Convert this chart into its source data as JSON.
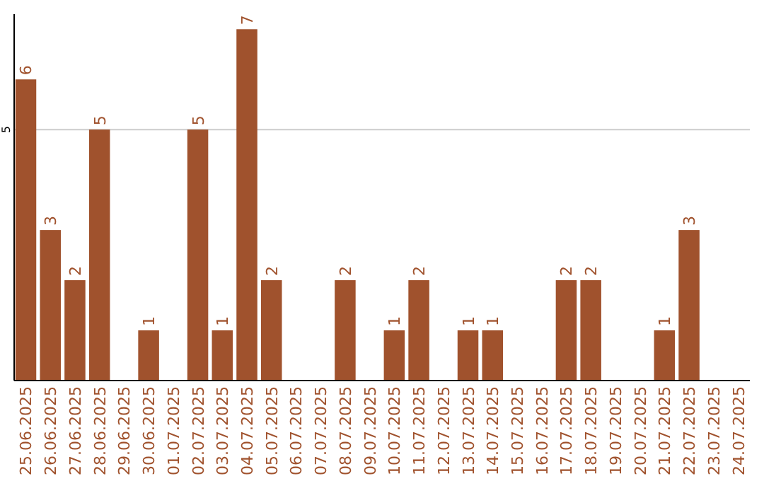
{
  "chart_data": {
    "type": "bar",
    "categories": [
      "25.06.2025",
      "26.06.2025",
      "27.06.2025",
      "28.06.2025",
      "29.06.2025",
      "30.06.2025",
      "01.07.2025",
      "02.07.2025",
      "03.07.2025",
      "04.07.2025",
      "05.07.2025",
      "06.07.2025",
      "07.07.2025",
      "08.07.2025",
      "09.07.2025",
      "10.07.2025",
      "11.07.2025",
      "12.07.2025",
      "13.07.2025",
      "14.07.2025",
      "15.07.2025",
      "16.07.2025",
      "17.07.2025",
      "18.07.2025",
      "19.07.2025",
      "20.07.2025",
      "21.07.2025",
      "22.07.2025",
      "23.07.2025",
      "24.07.2025"
    ],
    "values": [
      6,
      3,
      2,
      5,
      0,
      1,
      0,
      5,
      1,
      7,
      2,
      0,
      0,
      2,
      0,
      1,
      2,
      0,
      1,
      1,
      0,
      0,
      2,
      2,
      0,
      0,
      1,
      3,
      0,
      0
    ],
    "value_labels": [
      "6",
      "3",
      "2",
      "5",
      null,
      "1",
      null,
      "5",
      "1",
      "7",
      "2",
      null,
      null,
      "2",
      null,
      "1",
      "2",
      null,
      "1",
      "1",
      null,
      null,
      "2",
      "2",
      null,
      null,
      "1",
      "3",
      null,
      null
    ],
    "color": "#a0522d",
    "ylim": [
      0,
      7.3
    ],
    "yticks": [
      5
    ],
    "grid": "y"
  }
}
